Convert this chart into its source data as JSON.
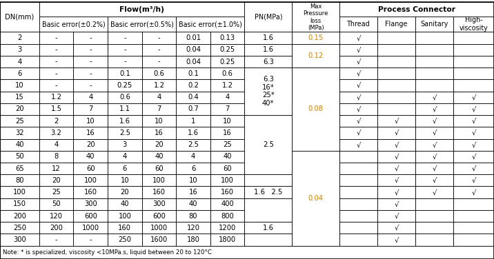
{
  "note": "Note: * is specialized, viscosity <10MPa.s, liquid between 20 to 120°C",
  "bg_color": "#ffffff",
  "font_size": 7.2,
  "rows": [
    [
      "2",
      "-",
      "-",
      "-",
      "-",
      "0.01",
      "0.13"
    ],
    [
      "3",
      "-",
      "-",
      "-",
      "-",
      "0.04",
      "0.25"
    ],
    [
      "4",
      "-",
      "-",
      "-",
      "-",
      "0.04",
      "0.25"
    ],
    [
      "6",
      "-",
      "-",
      "0.1",
      "0.6",
      "0.1",
      "0.6"
    ],
    [
      "10",
      "-",
      "-",
      "0.25",
      "1.2",
      "0.2",
      "1.2"
    ],
    [
      "15",
      "1.2",
      "4",
      "0.6",
      "4",
      "0.4",
      "4"
    ],
    [
      "20",
      "1.5",
      "7",
      "1.1",
      "7",
      "0.7",
      "7"
    ],
    [
      "25",
      "2",
      "10",
      "1.6",
      "10",
      "1",
      "10"
    ],
    [
      "32",
      "3.2",
      "16",
      "2.5",
      "16",
      "1.6",
      "16"
    ],
    [
      "40",
      "4",
      "20",
      "3",
      "20",
      "2.5",
      "25"
    ],
    [
      "50",
      "8",
      "40",
      "4",
      "40",
      "4",
      "40"
    ],
    [
      "65",
      "12",
      "60",
      "6",
      "60",
      "6",
      "60"
    ],
    [
      "80",
      "20",
      "100",
      "10",
      "100",
      "10",
      "100"
    ],
    [
      "100",
      "25",
      "160",
      "20",
      "160",
      "16",
      "160"
    ],
    [
      "150",
      "50",
      "300",
      "40",
      "300",
      "40",
      "400"
    ],
    [
      "200",
      "120",
      "600",
      "100",
      "600",
      "80",
      "800"
    ],
    [
      "250",
      "200",
      "1000",
      "160",
      "1000",
      "120",
      "1200"
    ],
    [
      "300",
      "-",
      "-",
      "250",
      "1600",
      "180",
      "1800"
    ]
  ],
  "pn_spans": [
    {
      "r0": 0,
      "r1": 0,
      "text": "1.6"
    },
    {
      "r0": 1,
      "r1": 1,
      "text": "1.6"
    },
    {
      "r0": 2,
      "r1": 2,
      "text": "6.3"
    },
    {
      "r0": 3,
      "r1": 6,
      "text": "6.3\n16*\n25*\n40*"
    },
    {
      "r0": 7,
      "r1": 11,
      "text": "2.5"
    },
    {
      "r0": 12,
      "r1": 12,
      "text": ""
    },
    {
      "r0": 13,
      "r1": 13,
      "text": "1.6   2.5"
    },
    {
      "r0": 14,
      "r1": 15,
      "text": ""
    },
    {
      "r0": 16,
      "r1": 16,
      "text": "1.6"
    },
    {
      "r0": 17,
      "r1": 17,
      "text": ""
    }
  ],
  "press_spans": [
    {
      "r0": 0,
      "r1": 0,
      "text": "0.15",
      "color": "#d08000"
    },
    {
      "r0": 1,
      "r1": 2,
      "text": "0.12",
      "color": "#d08000"
    },
    {
      "r0": 3,
      "r1": 9,
      "text": "0.08",
      "color": "#d08000"
    },
    {
      "r0": 10,
      "r1": 17,
      "text": "0.04",
      "color": "#d08000"
    }
  ],
  "thread_rows": [
    0,
    1,
    2,
    3,
    4,
    5,
    6,
    7,
    8,
    9
  ],
  "flange_rows": [
    7,
    8,
    9,
    10,
    11,
    12,
    13,
    14,
    15,
    16,
    17
  ],
  "sanitary_rows": [
    5,
    6,
    7,
    8,
    9,
    10,
    11,
    12,
    13
  ],
  "highvisc_rows": [
    5,
    6,
    7,
    8,
    9,
    10,
    11,
    12,
    13
  ]
}
